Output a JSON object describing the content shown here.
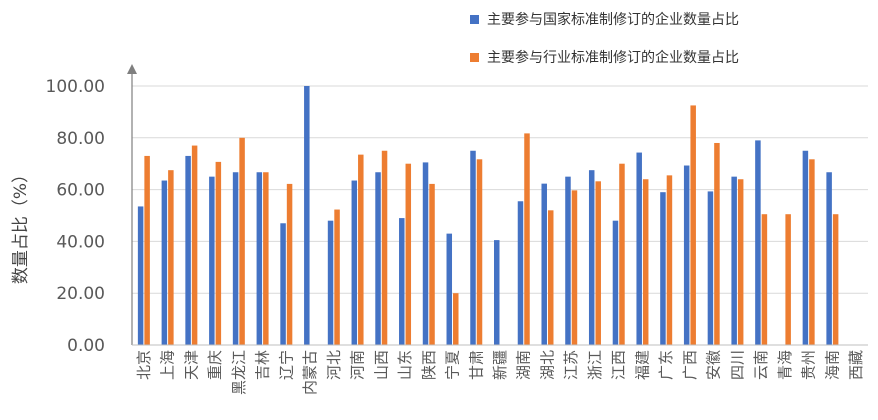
{
  "chart_data": {
    "type": "bar",
    "ylabel": "数量占比（%）",
    "ylim": [
      0,
      100
    ],
    "yticks": [
      "0.00",
      "20.00",
      "40.00",
      "60.00",
      "80.00",
      "100.00"
    ],
    "grid": true,
    "legend_position": "top-right",
    "categories": [
      "北京",
      "上海",
      "天津",
      "重庆",
      "黑龙江",
      "吉林",
      "辽宁",
      "内蒙古",
      "河北",
      "河南",
      "山西",
      "山东",
      "陕西",
      "宁夏",
      "甘肃",
      "新疆",
      "湖南",
      "湖北",
      "江苏",
      "浙江",
      "江西",
      "福建",
      "广东",
      "广西",
      "安徽",
      "四川",
      "云南",
      "青海",
      "贵州",
      "海南",
      "西藏"
    ],
    "series": [
      {
        "name": "主要参与国家标准制修订的企业数量占比",
        "color": "#4472C4",
        "values": [
          53.5,
          63.5,
          73,
          65,
          66.7,
          66.7,
          47,
          100,
          48,
          63.5,
          66.7,
          49,
          70.5,
          43,
          75,
          40.5,
          55.5,
          62.3,
          65,
          67.5,
          48,
          74.3,
          59,
          69.3,
          59.3,
          65,
          79,
          null,
          75,
          66.7,
          null
        ]
      },
      {
        "name": "主要参与行业标准制修订的企业数量占比",
        "color": "#ED7D31",
        "values": [
          73,
          67.5,
          77,
          70.7,
          80,
          66.7,
          62.2,
          null,
          52.3,
          73.5,
          75,
          70,
          62.2,
          20,
          71.7,
          null,
          81.7,
          52,
          59.7,
          63.2,
          70,
          64,
          65.5,
          92.5,
          78,
          64,
          50.5,
          50.5,
          71.7,
          50.5,
          null
        ]
      }
    ]
  }
}
